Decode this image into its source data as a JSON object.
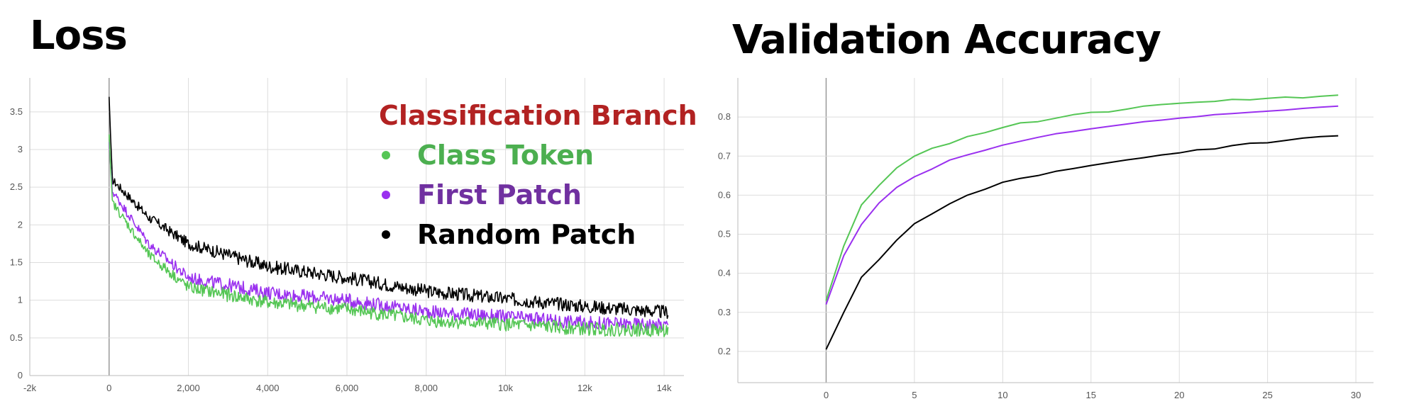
{
  "panels": {
    "loss": {
      "title": "Loss"
    },
    "accuracy": {
      "title": "Validation Accuracy"
    }
  },
  "colors": {
    "class_token": "#55c655",
    "first_patch": "#9a30ef",
    "random_patch": "#000000",
    "legend_title": "#b22222",
    "grid": "#dddddd",
    "axis_zero": "#999999"
  },
  "chart_data": [
    {
      "type": "line",
      "id": "loss",
      "title": "Loss",
      "xlim": [
        -2000,
        14500
      ],
      "ylim": [
        0,
        3.95
      ],
      "x_ticks": [
        {
          "value": -2000,
          "label": "-2k"
        },
        {
          "value": 0,
          "label": "0"
        },
        {
          "value": 2000,
          "label": "2,000"
        },
        {
          "value": 4000,
          "label": "4,000"
        },
        {
          "value": 6000,
          "label": "6,000"
        },
        {
          "value": 8000,
          "label": "8,000"
        },
        {
          "value": 10000,
          "label": "10k"
        },
        {
          "value": 12000,
          "label": "12k"
        },
        {
          "value": 14000,
          "label": "14k"
        }
      ],
      "y_ticks": [
        {
          "value": 0,
          "label": "0"
        },
        {
          "value": 0.5,
          "label": "0.5"
        },
        {
          "value": 1,
          "label": "1"
        },
        {
          "value": 1.5,
          "label": "1.5"
        },
        {
          "value": 2,
          "label": "2"
        },
        {
          "value": 2.5,
          "label": "2.5"
        },
        {
          "value": 3,
          "label": "3"
        },
        {
          "value": 3.5,
          "label": "3.5"
        }
      ],
      "grid": true,
      "legend": {
        "title": "Classification Branch",
        "position": "top-right",
        "items": [
          {
            "label": "Class Token",
            "series": "class_token"
          },
          {
            "label": "First Patch",
            "series": "first_patch"
          },
          {
            "label": "Random Patch",
            "series": "random_patch"
          }
        ]
      },
      "x_end": 14100,
      "series": [
        {
          "key": "class_token",
          "start": 3.2,
          "anchors": [
            [
              0,
              3.2
            ],
            [
              80,
              2.3
            ],
            [
              1000,
              1.6
            ],
            [
              2000,
              1.17
            ],
            [
              4000,
              0.97
            ],
            [
              6000,
              0.88
            ],
            [
              8000,
              0.73
            ],
            [
              10000,
              0.68
            ],
            [
              12000,
              0.62
            ],
            [
              14100,
              0.6
            ]
          ],
          "noise": 0.09
        },
        {
          "key": "first_patch",
          "start": 3.1,
          "anchors": [
            [
              0,
              3.1
            ],
            [
              80,
              2.45
            ],
            [
              1000,
              1.75
            ],
            [
              2000,
              1.3
            ],
            [
              4000,
              1.1
            ],
            [
              6000,
              1.0
            ],
            [
              8000,
              0.85
            ],
            [
              10000,
              0.78
            ],
            [
              12000,
              0.7
            ],
            [
              14100,
              0.67
            ]
          ],
          "noise": 0.09
        },
        {
          "key": "random_patch",
          "start": 3.7,
          "anchors": [
            [
              0,
              3.7
            ],
            [
              80,
              2.6
            ],
            [
              1000,
              2.1
            ],
            [
              2000,
              1.75
            ],
            [
              4000,
              1.45
            ],
            [
              6000,
              1.3
            ],
            [
              8000,
              1.12
            ],
            [
              10000,
              1.02
            ],
            [
              12000,
              0.92
            ],
            [
              14100,
              0.84
            ]
          ],
          "noise": 0.09
        }
      ]
    },
    {
      "type": "line",
      "id": "accuracy",
      "title": "Validation Accuracy",
      "xlim": [
        -5,
        31
      ],
      "ylim": [
        0.12,
        0.9
      ],
      "x_ticks": [
        {
          "value": 0,
          "label": "0"
        },
        {
          "value": 5,
          "label": "5"
        },
        {
          "value": 10,
          "label": "10"
        },
        {
          "value": 15,
          "label": "15"
        },
        {
          "value": 20,
          "label": "20"
        },
        {
          "value": 25,
          "label": "25"
        },
        {
          "value": 30,
          "label": "30"
        }
      ],
      "y_ticks": [
        {
          "value": 0.2,
          "label": "0.2"
        },
        {
          "value": 0.3,
          "label": "0.3"
        },
        {
          "value": 0.4,
          "label": "0.4"
        },
        {
          "value": 0.5,
          "label": "0.5"
        },
        {
          "value": 0.6,
          "label": "0.6"
        },
        {
          "value": 0.7,
          "label": "0.7"
        },
        {
          "value": 0.8,
          "label": "0.8"
        }
      ],
      "grid": true,
      "x": [
        0,
        1,
        2,
        3,
        4,
        5,
        6,
        7,
        8,
        9,
        10,
        11,
        12,
        13,
        14,
        15,
        16,
        17,
        18,
        19,
        20,
        21,
        22,
        23,
        24,
        25,
        26,
        27,
        28,
        29
      ],
      "series": [
        {
          "key": "class_token",
          "values": [
            0.33,
            0.47,
            0.575,
            0.625,
            0.67,
            0.7,
            0.72,
            0.732,
            0.75,
            0.76,
            0.773,
            0.785,
            0.788,
            0.797,
            0.806,
            0.812,
            0.813,
            0.82,
            0.828,
            0.832,
            0.835,
            0.838,
            0.84,
            0.845,
            0.844,
            0.848,
            0.851,
            0.849,
            0.853,
            0.856
          ]
        },
        {
          "key": "first_patch",
          "values": [
            0.32,
            0.445,
            0.525,
            0.58,
            0.62,
            0.647,
            0.667,
            0.69,
            0.703,
            0.715,
            0.728,
            0.738,
            0.748,
            0.757,
            0.763,
            0.77,
            0.776,
            0.782,
            0.788,
            0.792,
            0.797,
            0.801,
            0.806,
            0.809,
            0.812,
            0.815,
            0.818,
            0.822,
            0.825,
            0.828
          ]
        },
        {
          "key": "random_patch",
          "values": [
            0.205,
            0.3,
            0.39,
            0.435,
            0.485,
            0.527,
            0.552,
            0.578,
            0.6,
            0.615,
            0.633,
            0.643,
            0.65,
            0.661,
            0.668,
            0.676,
            0.683,
            0.69,
            0.696,
            0.703,
            0.708,
            0.716,
            0.718,
            0.727,
            0.733,
            0.734,
            0.74,
            0.746,
            0.75,
            0.752
          ]
        }
      ]
    }
  ]
}
